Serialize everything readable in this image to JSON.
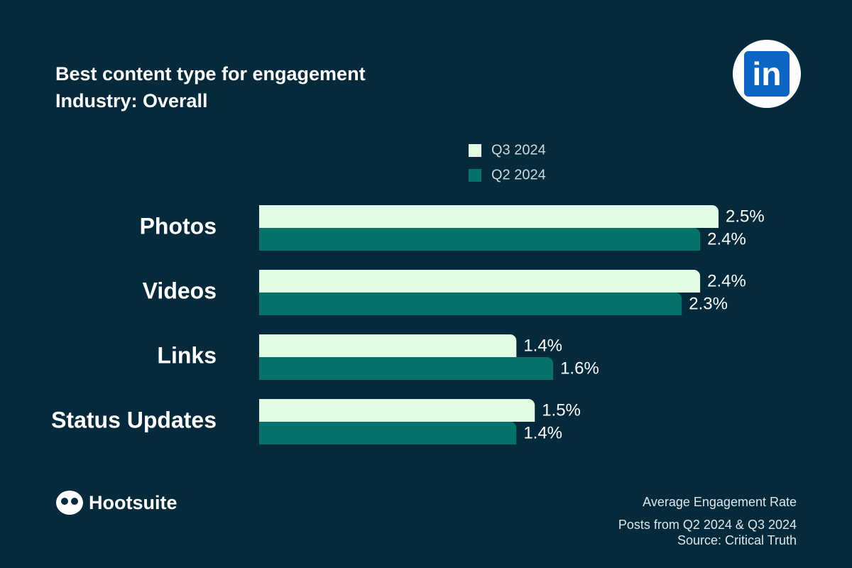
{
  "chart_data": {
    "type": "hbar",
    "title": "Best content type for engagement",
    "subtitle": "Industry: Overall",
    "categories": [
      "Photos",
      "Videos",
      "Links",
      "Status Updates"
    ],
    "series": [
      {
        "name": "Q3 2024",
        "color": "#e3fde4",
        "values": [
          2.5,
          2.4,
          1.4,
          1.5
        ],
        "value_labels": [
          "2.5%",
          "2.4%",
          "1.4%",
          "1.5%"
        ]
      },
      {
        "name": "Q2 2024",
        "color": "#06736b",
        "values": [
          2.4,
          2.3,
          1.6,
          1.4
        ],
        "value_labels": [
          "2.4%",
          "2.3%",
          "1.6%",
          "1.4%"
        ]
      }
    ],
    "notes": [
      "Average Engagement Rate",
      "Posts from Q2 2024 & Q3 2024",
      "Source: Critical Truth"
    ],
    "brand": "Hootsuite",
    "logo": "in"
  }
}
